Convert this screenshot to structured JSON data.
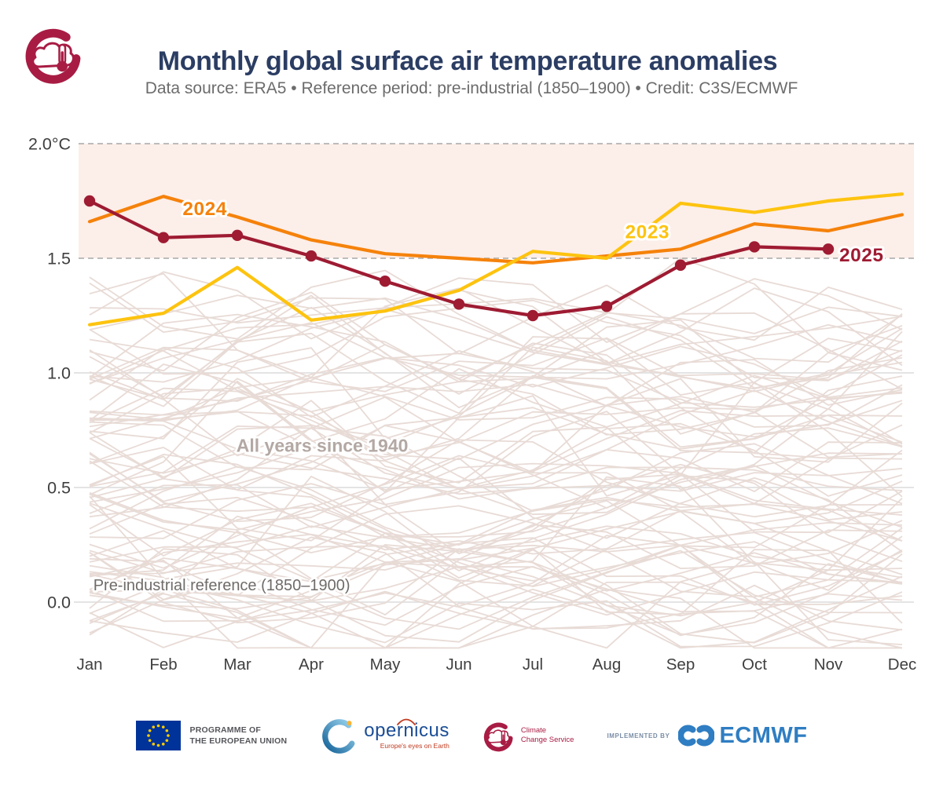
{
  "header": {
    "title": "Monthly global surface air temperature anomalies",
    "subtitle": "Data source: ERA5 • Reference period: pre-industrial (1850–1900) • Credit: C3S/ECMWF"
  },
  "chart_data": {
    "type": "line",
    "title": "Monthly global surface air temperature anomalies",
    "x_categories": [
      "Jan",
      "Feb",
      "Mar",
      "Apr",
      "May",
      "Jun",
      "Jul",
      "Aug",
      "Sep",
      "Oct",
      "Nov",
      "Dec"
    ],
    "y_axis": {
      "unit": "°C",
      "range": [
        -0.25,
        2.05
      ],
      "ticks": [
        {
          "value": 2.0,
          "label": "2.0°C",
          "style": "dashed"
        },
        {
          "value": 1.5,
          "label": "1.5",
          "style": "dashed"
        },
        {
          "value": 1.0,
          "label": "1.0",
          "style": "solid"
        },
        {
          "value": 0.5,
          "label": "0.5",
          "style": "solid"
        },
        {
          "value": 0.0,
          "label": "0.0",
          "style": "solid"
        }
      ]
    },
    "band": {
      "from": 1.5,
      "to": 2.0,
      "color": "#FCEEE9"
    },
    "series": [
      {
        "name": "2024",
        "color": "#F5820B",
        "marker": false,
        "values": [
          1.66,
          1.77,
          1.68,
          1.58,
          1.52,
          1.5,
          1.48,
          1.51,
          1.54,
          1.65,
          1.62,
          1.69
        ],
        "label_anchor": {
          "x": 1.56,
          "y": 1.715
        }
      },
      {
        "name": "2023",
        "color": "#FDC30F",
        "marker": false,
        "values": [
          1.21,
          1.26,
          1.46,
          1.23,
          1.27,
          1.36,
          1.53,
          1.5,
          1.74,
          1.7,
          1.75,
          1.78
        ],
        "label_anchor": {
          "x": 7.55,
          "y": 1.615
        }
      },
      {
        "name": "2025",
        "color": "#9E1B32",
        "marker": true,
        "values": [
          1.75,
          1.59,
          1.6,
          1.51,
          1.4,
          1.3,
          1.25,
          1.29,
          1.47,
          1.55,
          1.54,
          null
        ],
        "label_anchor": {
          "x": 10.45,
          "y": 1.513
        }
      }
    ],
    "background_ensemble": {
      "label": "All years since 1940",
      "color": "#E8DBD6",
      "count": 83,
      "value_range": [
        -0.2,
        1.5
      ],
      "seed": 1940
    },
    "annotations": [
      {
        "id": "all-years",
        "text": "All years since 1940",
        "x": 3.15,
        "y": 0.68,
        "bold": true,
        "color": "#B3A8A3",
        "anchor": "middle"
      },
      {
        "id": "preindustrial",
        "text": "Pre-industrial reference (1850–1900)",
        "x": 0.05,
        "y": 0.075,
        "bold": false,
        "color": "#6F6B68",
        "anchor": "start"
      }
    ]
  },
  "theme": {
    "page_bg": "#FFFFFF",
    "title_color": "#2B3D63",
    "subtitle_color": "#6C6C6C",
    "axis_text": "#3F3F3F",
    "grid_dashed": "#A8A8A8",
    "grid_solid": "#E4E4E4",
    "crimson_logo": "#A81C44",
    "eu_blue": "#003399",
    "eu_star": "#FFCC00",
    "copernicus_navy": "#1B4D96",
    "copernicus_red": "#C03A1F",
    "ecmwf_blue": "#2F7DC2"
  },
  "footer": {
    "eu_line1": "PROGRAMME OF",
    "eu_line2": "THE EUROPEAN UNION",
    "copernicus_word": "opernicus",
    "copernicus_tagline": "Europe's eyes on Earth",
    "c3s_line1": "Climate",
    "c3s_line2": "Change Service",
    "implemented_by": "IMPLEMENTED BY",
    "ecmwf": "ECMWF"
  }
}
